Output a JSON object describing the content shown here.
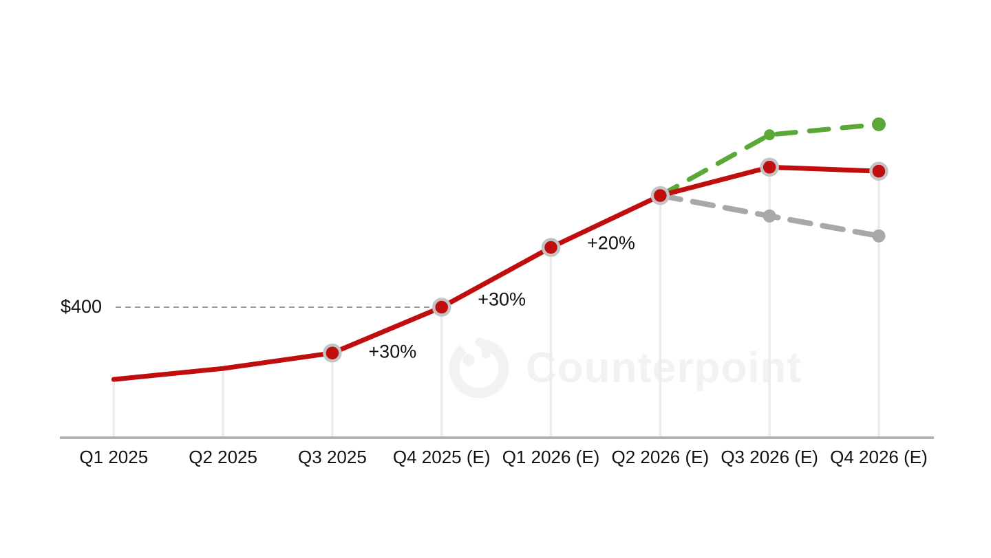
{
  "chart_data": {
    "type": "line",
    "title": "",
    "categories": [
      "Q1 2025",
      "Q2 2025",
      "Q3 2025",
      "Q4 2025 (E)",
      "Q1 2026 (E)",
      "Q2 2026 (E)",
      "Q3 2026 (E)",
      "Q4 2026 (E)"
    ],
    "series": [
      {
        "name": "main-actual-and-forecast",
        "color": "#c00d0d",
        "style": "solid",
        "start_index": 0,
        "values": [
          255,
          277,
          308,
          400,
          520,
          624,
          681,
          673
        ],
        "marker_indices": [
          2,
          3,
          4,
          5,
          6,
          7
        ]
      },
      {
        "name": "upside-scenario",
        "color": "#5aa838",
        "style": "dashed",
        "start_index": 5,
        "values": [
          624,
          746,
          767
        ]
      },
      {
        "name": "downside-scenario",
        "color": "#a8a8a8",
        "style": "dashed",
        "start_index": 5,
        "values": [
          624,
          583,
          543
        ]
      }
    ],
    "annotations": [
      {
        "text": "+30%",
        "between": [
          2,
          3
        ]
      },
      {
        "text": "+30%",
        "between": [
          3,
          4
        ]
      },
      {
        "text": "+20%",
        "between": [
          4,
          5
        ]
      }
    ],
    "reference_line": {
      "label": "$400",
      "value": 400
    },
    "ylim": [
      150,
      820
    ],
    "grid": false,
    "legend": "none",
    "values_estimated": true
  },
  "watermark": {
    "text": "Counterpoint"
  },
  "colors": {
    "main_line": "#c00d0d",
    "upside_line": "#5aa838",
    "downside_line": "#a8a8a8",
    "marker_ring": "#c3c3c3",
    "axis": "#b3b3b3",
    "dropline": "#ececec",
    "reference_dash": "#999999",
    "text": "#111111",
    "watermark": "#f2f2f2"
  }
}
